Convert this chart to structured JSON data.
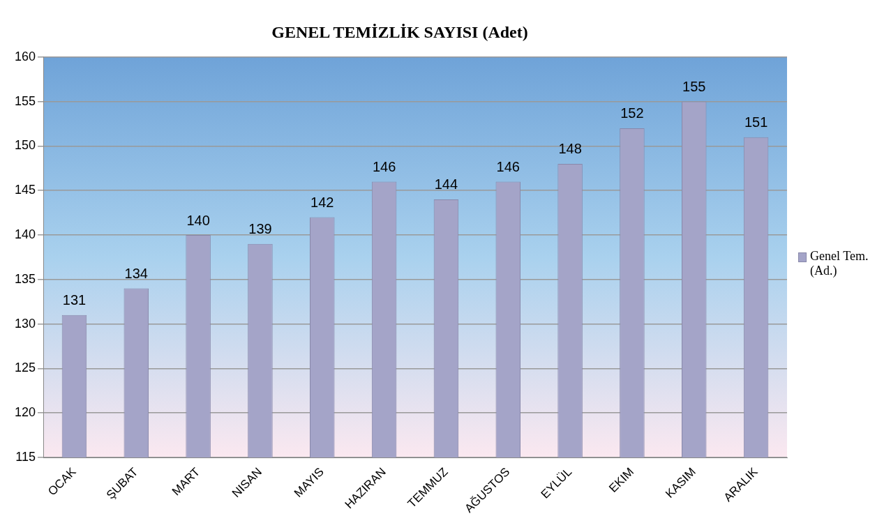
{
  "chart_data": {
    "type": "bar",
    "title": "GENEL TEMİZLİK SAYISI (Adet)",
    "categories": [
      "OCAK",
      "ŞUBAT",
      "MART",
      "NISAN",
      "MAYIS",
      "HAZIRAN",
      "TEMMUZ",
      "AĞUSTOS",
      "EYLÜL",
      "EKIM",
      "KASIM",
      "ARALIK"
    ],
    "series": [
      {
        "name": "Genel Tem.(Ad.)",
        "color": "#a4a4c8",
        "values": [
          131,
          134,
          140,
          139,
          142,
          146,
          144,
          146,
          148,
          152,
          155,
          151
        ]
      }
    ],
    "ylim": [
      115,
      160
    ],
    "yticks": [
      115,
      120,
      125,
      130,
      135,
      140,
      145,
      150,
      155,
      160
    ],
    "grid": "y",
    "legend": "right",
    "data_labels": true
  }
}
